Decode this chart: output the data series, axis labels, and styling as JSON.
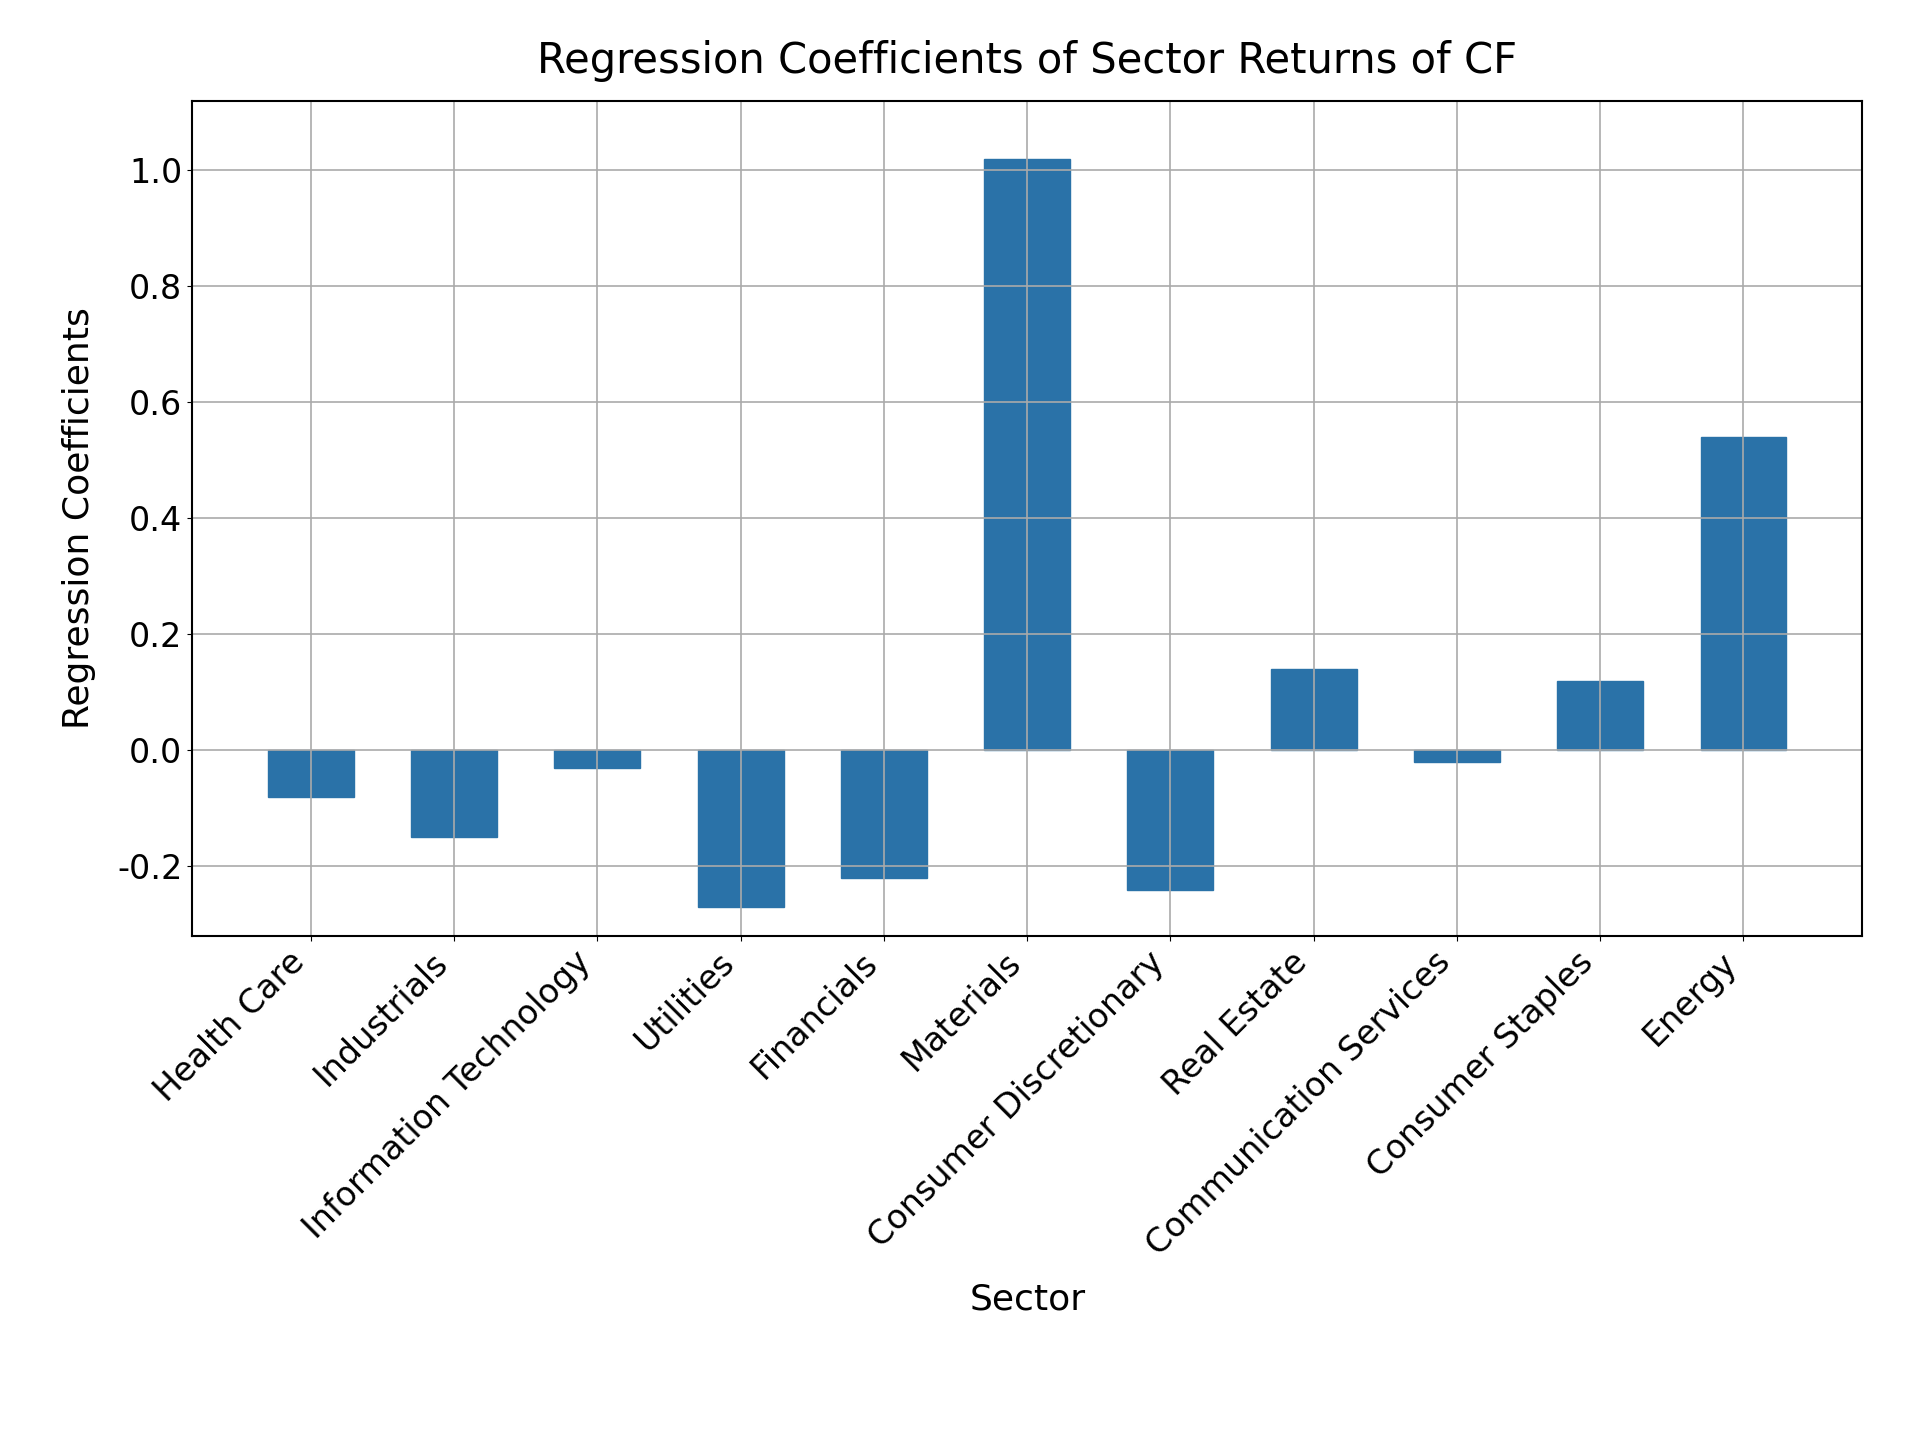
{
  "categories": [
    "Health Care",
    "Industrials",
    "Information Technology",
    "Utilities",
    "Financials",
    "Materials",
    "Consumer Discretionary",
    "Real Estate",
    "Communication Services",
    "Consumer Staples",
    "Energy"
  ],
  "values": [
    -0.08,
    -0.15,
    -0.03,
    -0.27,
    -0.22,
    1.02,
    -0.24,
    0.14,
    -0.02,
    0.12,
    0.54
  ],
  "bar_color": "#2a72a8",
  "title": "Regression Coefficients of Sector Returns of CF",
  "xlabel": "Sector",
  "ylabel": "Regression Coefficients",
  "title_fontsize": 30,
  "label_fontsize": 26,
  "tick_fontsize": 24,
  "background_color": "#ffffff",
  "grid_color": "#aaaaaa",
  "ylim": [
    -0.32,
    1.12
  ],
  "yticks": [
    -0.2,
    0.0,
    0.2,
    0.4,
    0.6,
    0.8,
    1.0
  ]
}
